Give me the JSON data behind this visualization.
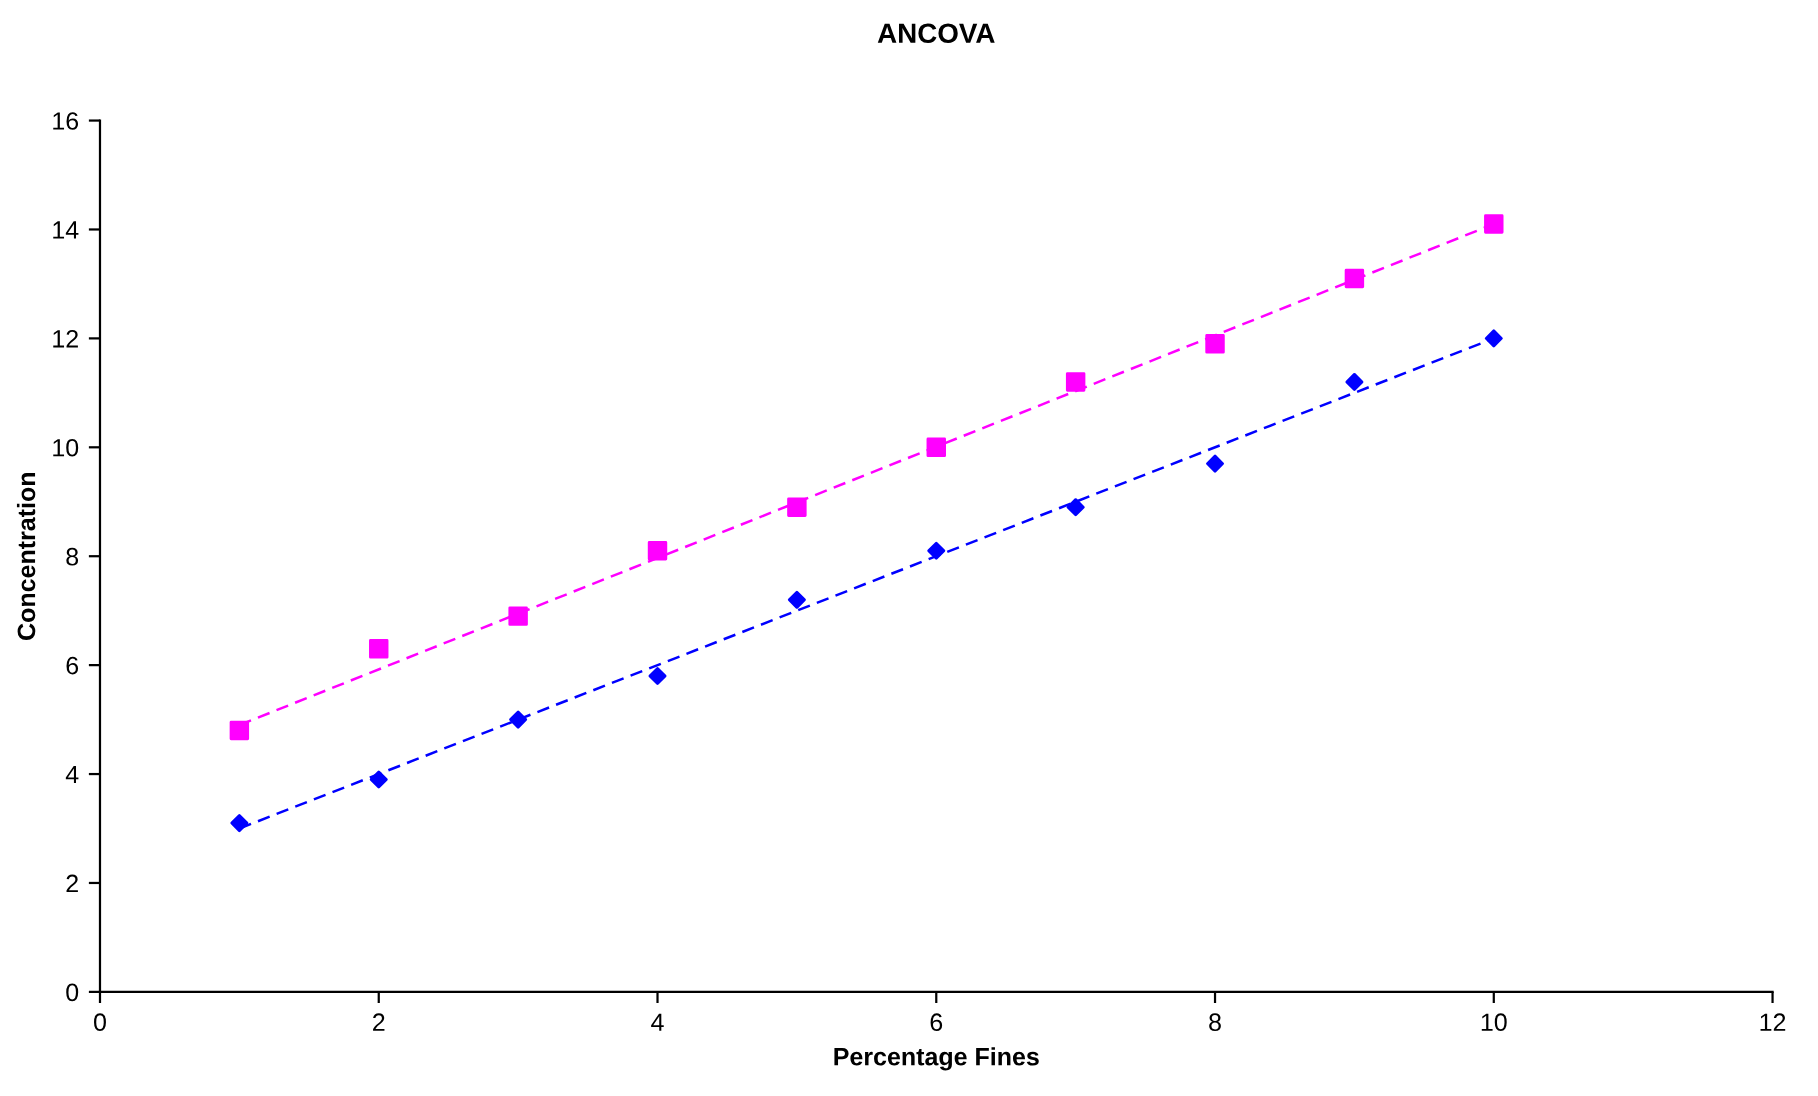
{
  "chart_data": {
    "type": "scatter",
    "title": "ANCOVA",
    "xlabel": "Percentage Fines",
    "ylabel": "Concentration",
    "xlim": [
      0,
      12
    ],
    "xticks": [
      0,
      2,
      4,
      6,
      8,
      10,
      12
    ],
    "ylim": [
      0,
      16
    ],
    "yticks": [
      0,
      2,
      4,
      6,
      8,
      10,
      12,
      14,
      16
    ],
    "grid": false,
    "series": [
      {
        "color": "#0000ff",
        "marker": "diamond",
        "x": [
          1,
          2,
          3,
          4,
          5,
          6,
          7,
          8,
          9,
          10
        ],
        "values": [
          3.1,
          3.9,
          5.0,
          5.8,
          7.2,
          8.1,
          8.9,
          9.7,
          11.2,
          12.0
        ]
      },
      {
        "color": "#ff00ff",
        "marker": "square",
        "x": [
          1,
          2,
          3,
          4,
          5,
          6,
          7,
          8,
          9,
          10
        ],
        "values": [
          4.8,
          6.3,
          6.9,
          8.1,
          8.9,
          10.0,
          11.2,
          11.9,
          13.1,
          14.1
        ]
      },
      {
        "type": "line",
        "color": "#0000ff",
        "marker": "none",
        "line_style": "dashed",
        "x": [
          1,
          10
        ],
        "values": [
          3.0,
          12.0
        ]
      },
      {
        "type": "line",
        "color": "#ff00ff",
        "marker": "none",
        "line_style": "dashed",
        "x": [
          1,
          10
        ],
        "values": [
          4.9,
          14.1
        ]
      }
    ]
  }
}
